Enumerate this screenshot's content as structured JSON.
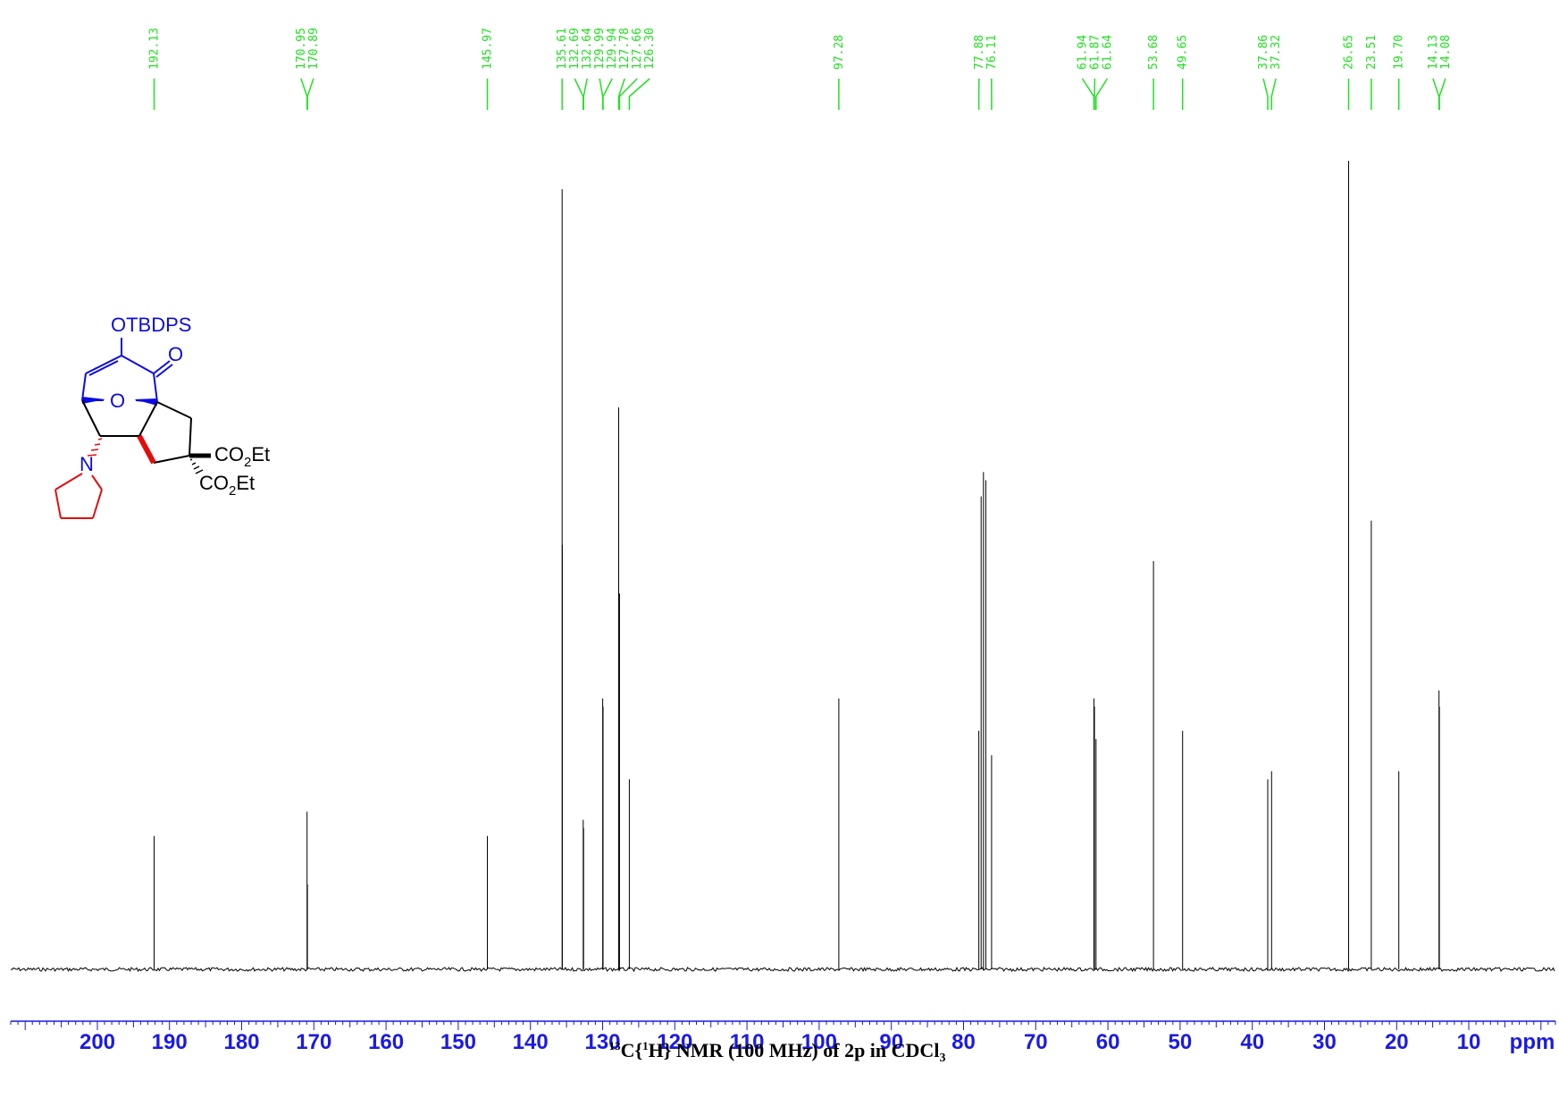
{
  "chart_data": {
    "type": "line",
    "title_parts": {
      "mass": "13",
      "c": "C{",
      "one": "1",
      "rest": "H} NMR (100 MHz) of 2p in CDCl",
      "sub": "3"
    },
    "xlabel": "ppm",
    "xlim": [
      212.0,
      -2.0
    ],
    "x_reversed": true,
    "x_ticks": [
      200,
      190,
      180,
      170,
      160,
      150,
      140,
      130,
      120,
      110,
      100,
      90,
      80,
      70,
      60,
      50,
      40,
      30,
      20,
      10
    ],
    "peak_labels": [
      "192.13",
      "170.95",
      "170.89",
      "145.97",
      "135.61",
      "132.69",
      "132.64",
      "129.99",
      "129.94",
      "127.78",
      "127.66",
      "126.30",
      "97.28",
      "77.88",
      "76.11",
      "61.94",
      "61.87",
      "61.64",
      "53.68",
      "49.65",
      "37.86",
      "37.32",
      "26.65",
      "23.51",
      "19.70",
      "14.13",
      "14.08"
    ],
    "peaks": [
      {
        "x": 192.13,
        "y": 0.165
      },
      {
        "x": 170.95,
        "y": 0.195
      },
      {
        "x": 170.89,
        "y": 0.105
      },
      {
        "x": 145.97,
        "y": 0.165
      },
      {
        "x": 135.61,
        "y": 0.965
      },
      {
        "x": 135.58,
        "y": 0.525
      },
      {
        "x": 132.69,
        "y": 0.185
      },
      {
        "x": 132.64,
        "y": 0.175
      },
      {
        "x": 129.99,
        "y": 0.335
      },
      {
        "x": 129.94,
        "y": 0.325
      },
      {
        "x": 127.78,
        "y": 0.695
      },
      {
        "x": 127.66,
        "y": 0.465
      },
      {
        "x": 126.3,
        "y": 0.235
      },
      {
        "x": 97.28,
        "y": 0.335
      },
      {
        "x": 77.88,
        "y": 0.295
      },
      {
        "x": 77.56,
        "y": 0.585
      },
      {
        "x": 77.24,
        "y": 0.615
      },
      {
        "x": 76.92,
        "y": 0.605
      },
      {
        "x": 76.11,
        "y": 0.265
      },
      {
        "x": 61.94,
        "y": 0.335
      },
      {
        "x": 61.87,
        "y": 0.325
      },
      {
        "x": 61.64,
        "y": 0.285
      },
      {
        "x": 53.68,
        "y": 0.505
      },
      {
        "x": 49.65,
        "y": 0.295
      },
      {
        "x": 37.86,
        "y": 0.235
      },
      {
        "x": 37.32,
        "y": 0.245
      },
      {
        "x": 26.65,
        "y": 1.0
      },
      {
        "x": 23.51,
        "y": 0.555
      },
      {
        "x": 19.7,
        "y": 0.245
      },
      {
        "x": 14.13,
        "y": 0.345
      },
      {
        "x": 14.08,
        "y": 0.325
      }
    ]
  },
  "structure": {
    "silyl_label": "OTBDPS",
    "ketone_o": "O",
    "bridge_o": "O",
    "nitrogen": "N",
    "ester_co_1": "CO",
    "ester_sub_1": "2",
    "ester_et_1": "Et",
    "ester_co_2": "CO",
    "ester_sub_2": "2",
    "ester_et_2": "Et",
    "colors": {
      "scaffold": "#0b0be6",
      "amine": "#e60b0b",
      "ester": "#000000"
    }
  },
  "colors": {
    "peak_labels": "#22e022",
    "axis": "#1a1ae6",
    "spectrum": "#000000"
  }
}
